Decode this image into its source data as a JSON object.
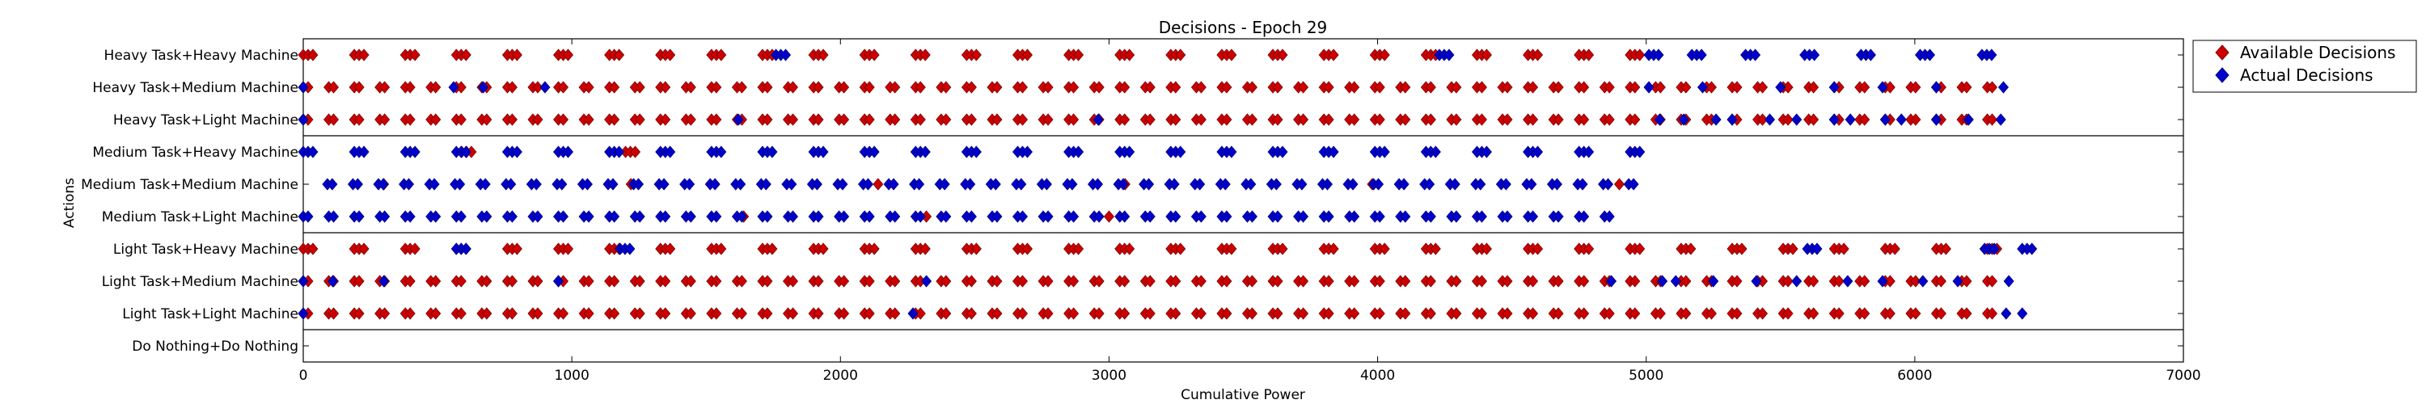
{
  "chart_data": {
    "type": "scatter",
    "title": "Decisions - Epoch 29",
    "xlabel": "Cumulative Power",
    "ylabel": "Actions",
    "xlim": [
      0,
      7000
    ],
    "x_ticks": [
      0,
      1000,
      2000,
      3000,
      4000,
      5000,
      6000,
      7000
    ],
    "categories": [
      "Heavy Task+Heavy Machine",
      "Heavy Task+Medium Machine",
      "Heavy Task+Light Machine",
      "Medium Task+Heavy Machine",
      "Medium Task+Medium Machine",
      "Medium Task+Light Machine",
      "Light Task+Heavy Machine",
      "Light Task+Medium Machine",
      "Light Task+Light Machine",
      "Do Nothing+Do Nothing"
    ],
    "group_separators_after": [
      2,
      5,
      8
    ],
    "legend": {
      "placement": "outside-right",
      "entries": [
        {
          "label": "Available Decisions",
          "color": "#cc0000"
        },
        {
          "label": "Actual Decisions",
          "color": "#0000cc"
        }
      ]
    },
    "series": [
      {
        "name": "Available Decisions",
        "color": "#cc0000",
        "rows": [
          {
            "category": 0,
            "x_start": 0,
            "x_end": 5010,
            "pitch": 190,
            "burst": 3,
            "burst_step": 18
          },
          {
            "category": 1,
            "x_start": 0,
            "x_end": 6330,
            "pitch": 95,
            "burst": 2,
            "burst_step": 18
          },
          {
            "category": 2,
            "x_start": 0,
            "x_end": 6330,
            "pitch": 95,
            "burst": 2,
            "burst_step": 18
          },
          {
            "category": 3,
            "x_start": 590,
            "x_end": 1240,
            "pitch": 610,
            "burst": 3,
            "burst_step": 18
          },
          {
            "category": 4,
            "x_start": 300,
            "x_end": 4900,
            "pitch": 920,
            "burst": 1,
            "burst_step": 18
          },
          {
            "category": 5,
            "x_start": 1640,
            "x_end": 3000,
            "pitch": 680,
            "burst": 1,
            "burst_step": 18
          },
          {
            "category": 6,
            "x_start": 0,
            "x_end": 6280,
            "pitch": 190,
            "burst": 3,
            "burst_step": 18
          },
          {
            "category": 7,
            "x_start": 0,
            "x_end": 6330,
            "pitch": 95,
            "burst": 2,
            "burst_step": 18
          },
          {
            "category": 8,
            "x_start": 0,
            "x_end": 6330,
            "pitch": 95,
            "burst": 2,
            "burst_step": 18
          }
        ]
      },
      {
        "name": "Actual Decisions",
        "color": "#0000cc",
        "rows": [
          {
            "category": 0,
            "x_start": 1760,
            "x_end": 6270,
            "pitch": 0,
            "burst": 3,
            "burst_step": 18,
            "points": [
              1760,
              4230,
              5010,
              5170,
              5370,
              5590,
              5800,
              6020,
              6250
            ]
          },
          {
            "category": 1,
            "x_start": 0,
            "x_end": 6330,
            "pitch": 0,
            "burst": 1,
            "burst_step": 18,
            "points": [
              0,
              560,
              670,
              900,
              5010,
              5210,
              5500,
              5700,
              5880,
              6080,
              6330
            ]
          },
          {
            "category": 2,
            "x_start": 0,
            "x_end": 6330,
            "pitch": 0,
            "burst": 1,
            "burst_step": 18,
            "points": [
              0,
              1620,
              2960,
              5050,
              5140,
              5260,
              5320,
              5460,
              5560,
              5700,
              5760,
              5890,
              5950,
              6080,
              6200,
              6320
            ]
          },
          {
            "category": 3,
            "x_start": 0,
            "x_end": 5000,
            "pitch": 190,
            "burst": 3,
            "burst_step": 18
          },
          {
            "category": 4,
            "x_start": 90,
            "x_end": 4940,
            "pitch": 95,
            "burst": 2,
            "burst_step": 18
          },
          {
            "category": 5,
            "x_start": 0,
            "x_end": 4920,
            "pitch": 95,
            "burst": 2,
            "burst_step": 18
          },
          {
            "category": 6,
            "x_start": 570,
            "x_end": 6470,
            "pitch": 0,
            "burst": 3,
            "burst_step": 18,
            "points": [
              570,
              1180,
              5600,
              6260,
              6400
            ]
          },
          {
            "category": 7,
            "x_start": 0,
            "x_end": 6370,
            "pitch": 0,
            "burst": 1,
            "burst_step": 18,
            "points": [
              0,
              110,
              300,
              950,
              2320,
              4870,
              5060,
              5110,
              5250,
              5410,
              5560,
              5750,
              5880,
              6030,
              6160,
              6350
            ]
          },
          {
            "category": 8,
            "x_start": 0,
            "x_end": 6400,
            "pitch": 0,
            "burst": 1,
            "burst_step": 18,
            "points": [
              0,
              2270,
              6340,
              6400
            ]
          }
        ]
      }
    ]
  }
}
